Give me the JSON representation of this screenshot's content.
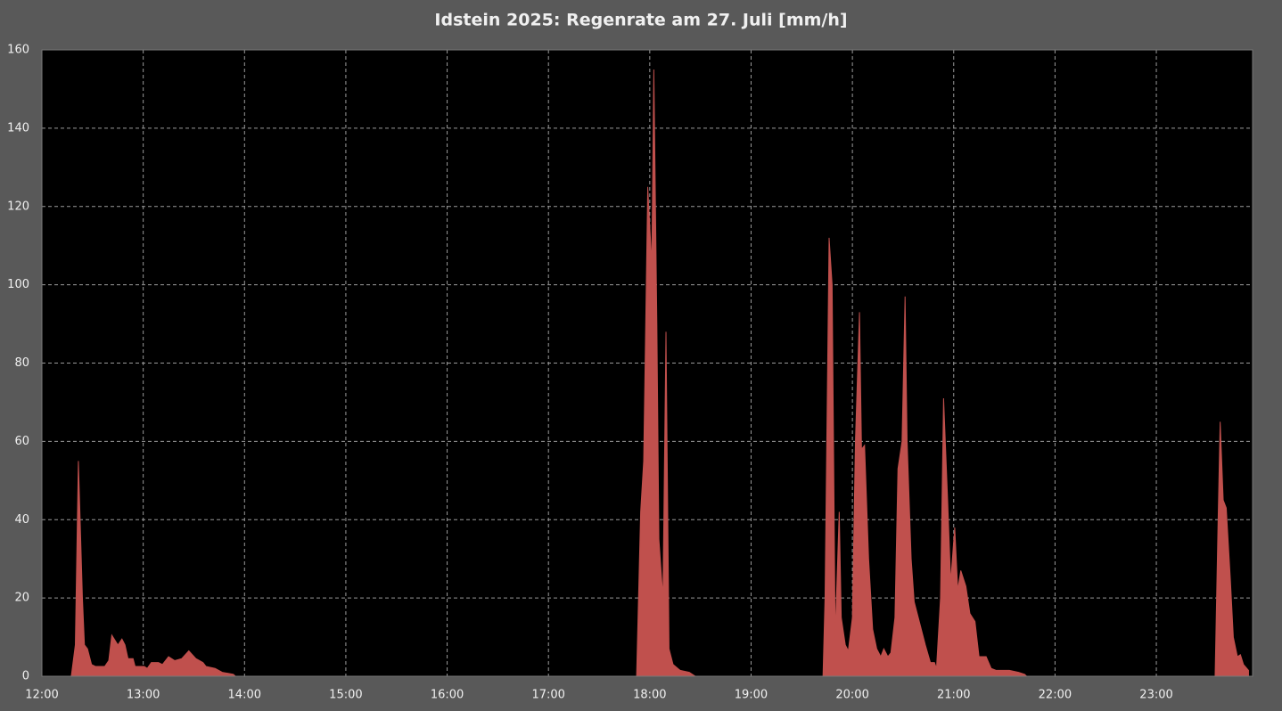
{
  "chart_data": {
    "type": "area",
    "title": "Idstein 2025:  Regenrate am 27. Juli  [mm/h]",
    "color": "#c0504d",
    "grid": true,
    "x": [
      12.29,
      12.33,
      12.36,
      12.4,
      12.42,
      12.45,
      12.49,
      12.53,
      12.62,
      12.66,
      12.69,
      12.75,
      12.79,
      12.82,
      12.85,
      12.9,
      12.92,
      13.01,
      13.04,
      13.08,
      13.15,
      13.19,
      13.25,
      13.31,
      13.38,
      13.45,
      13.52,
      13.59,
      13.62,
      13.71,
      13.78,
      13.89,
      13.91,
      17.87,
      17.91,
      17.94,
      17.98,
      18.02,
      18.04,
      18.07,
      18.09,
      18.13,
      18.16,
      18.19,
      18.23,
      18.3,
      18.39,
      18.45,
      19.71,
      19.73,
      19.77,
      19.8,
      19.83,
      19.87,
      19.89,
      19.93,
      19.96,
      20.0,
      20.03,
      20.07,
      20.09,
      20.12,
      20.16,
      20.2,
      20.24,
      20.28,
      20.31,
      20.35,
      20.38,
      20.42,
      20.45,
      20.49,
      20.52,
      20.54,
      20.58,
      20.61,
      20.67,
      20.72,
      20.77,
      20.81,
      20.83,
      20.87,
      20.9,
      20.94,
      20.97,
      21.01,
      21.04,
      21.07,
      21.12,
      21.16,
      21.21,
      21.25,
      21.32,
      21.37,
      21.42,
      21.55,
      21.64,
      21.7,
      21.72,
      23.58,
      23.61,
      23.63,
      23.66,
      23.69,
      23.73,
      23.76,
      23.8,
      23.83,
      23.86,
      23.91
    ],
    "y": [
      0,
      8,
      55,
      20,
      8,
      7,
      3,
      2.5,
      2.5,
      4,
      10.5,
      8,
      9.5,
      8,
      4.5,
      4.5,
      2.5,
      2.5,
      2,
      3.5,
      3.5,
      3,
      5,
      4,
      4.5,
      6.5,
      4.5,
      3.5,
      2.5,
      2,
      1,
      0.5,
      0,
      0,
      42,
      55,
      125,
      105,
      155,
      90,
      35,
      20,
      88,
      7,
      3,
      1.5,
      1,
      0,
      0,
      20,
      112,
      100,
      10,
      42,
      15,
      8,
      6.5,
      15,
      60,
      93,
      58,
      59,
      30,
      12,
      7,
      5,
      7,
      5,
      6,
      15,
      53,
      60,
      97,
      60,
      30,
      19,
      13,
      8,
      3.5,
      3.5,
      2,
      20,
      71,
      45,
      24,
      38,
      22,
      27,
      23,
      16,
      14,
      5,
      5,
      2,
      1.5,
      1.5,
      1,
      0.5,
      0,
      0,
      40,
      65,
      45,
      43,
      25,
      10,
      5,
      5.5,
      3,
      1.5
    ],
    "xlim": [
      12,
      23.95
    ],
    "xticks": [
      {
        "value": 12,
        "label": "12:00"
      },
      {
        "value": 13,
        "label": "13:00"
      },
      {
        "value": 14,
        "label": "14:00"
      },
      {
        "value": 15,
        "label": "15:00"
      },
      {
        "value": 16,
        "label": "16:00"
      },
      {
        "value": 17,
        "label": "17:00"
      },
      {
        "value": 18,
        "label": "18:00"
      },
      {
        "value": 19,
        "label": "19:00"
      },
      {
        "value": 20,
        "label": "20:00"
      },
      {
        "value": 21,
        "label": "21:00"
      },
      {
        "value": 22,
        "label": "22:00"
      },
      {
        "value": 23,
        "label": "23:00"
      }
    ],
    "ylim": [
      0,
      160
    ],
    "yticks": [
      0,
      20,
      40,
      60,
      80,
      100,
      120,
      140,
      160
    ]
  }
}
